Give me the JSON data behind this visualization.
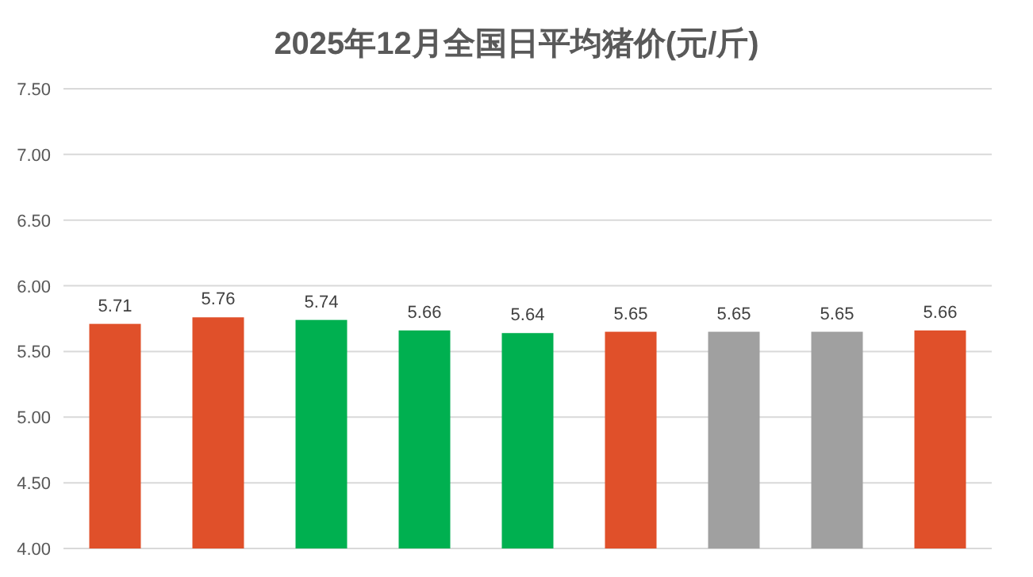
{
  "chart_data": {
    "type": "bar",
    "title": "2025年12月全国日平均猪价(元/斤)",
    "categories": [
      null,
      null,
      null,
      null,
      null,
      null,
      null,
      null,
      null
    ],
    "values": [
      5.71,
      5.76,
      5.74,
      5.66,
      5.64,
      5.65,
      5.65,
      5.65,
      5.66
    ],
    "colors": [
      "#e0502a",
      "#e0502a",
      "#00b050",
      "#00b050",
      "#00b050",
      "#e0502a",
      "#a0a0a0",
      "#a0a0a0",
      "#e0502a"
    ],
    "ylim": [
      4.0,
      7.5
    ],
    "yticks": [
      {
        "value": 4.0,
        "label": "4.00"
      },
      {
        "value": 4.5,
        "label": "4.50"
      },
      {
        "value": 5.0,
        "label": "5.00"
      },
      {
        "value": 5.5,
        "label": "5.50"
      },
      {
        "value": 6.0,
        "label": "6.00"
      },
      {
        "value": 6.5,
        "label": "6.50"
      },
      {
        "value": 7.0,
        "label": "7.00"
      },
      {
        "value": 7.5,
        "label": "7.50"
      }
    ],
    "grid": "y",
    "data_labels": true
  }
}
